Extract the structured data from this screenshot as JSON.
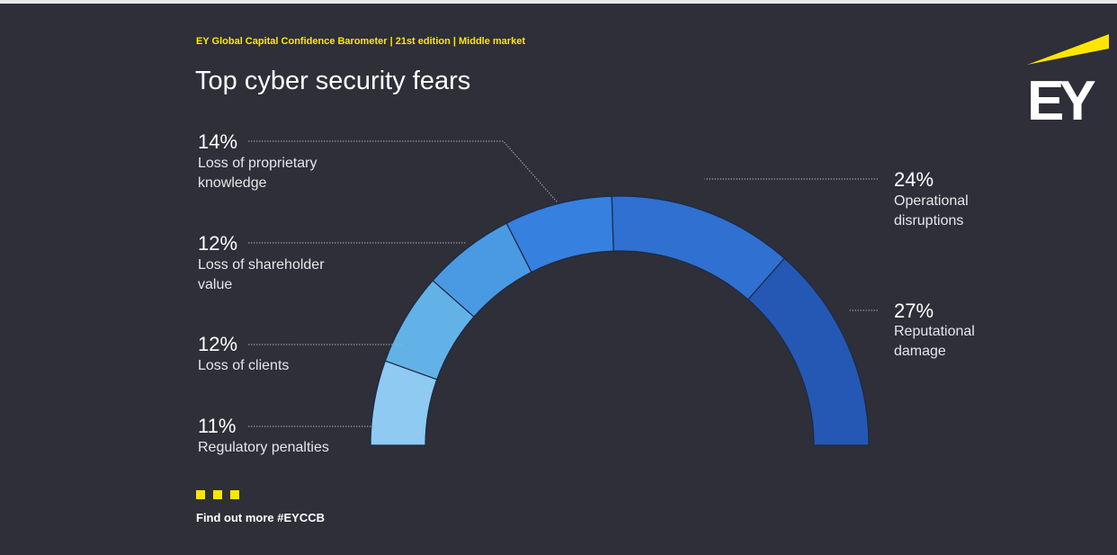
{
  "header": {
    "source": "EY Global Capital Confidence Barometer | 21st edition | Middle market",
    "title": "Top cyber security fears"
  },
  "chart_data": {
    "type": "pie",
    "style": "half-donut",
    "title": "Top cyber security fears",
    "unit": "%",
    "slices": [
      {
        "label": "Regulatory penalties",
        "value": 11,
        "display": "11%",
        "color": "#8fcaf2"
      },
      {
        "label": "Loss of clients",
        "value": 12,
        "display": "12%",
        "color": "#62b2e8"
      },
      {
        "label": "Loss of shareholder value",
        "value": 12,
        "display": "12%",
        "color": "#4a9ae3"
      },
      {
        "label": "Loss of proprietary knowledge",
        "value": 14,
        "display": "14%",
        "color": "#3680df"
      },
      {
        "label": "Operational disruptions",
        "value": 24,
        "display": "24%",
        "color": "#2f70d0"
      },
      {
        "label": "Reputational damage",
        "value": 27,
        "display": "27%",
        "color": "#2558b5"
      }
    ]
  },
  "labels": {
    "left": [
      {
        "pct": "14%",
        "lines": [
          "Loss of proprietary",
          "knowledge"
        ]
      },
      {
        "pct": "12%",
        "lines": [
          "Loss of shareholder",
          "value"
        ]
      },
      {
        "pct": "12%",
        "lines": [
          "Loss of clients"
        ]
      },
      {
        "pct": "11%",
        "lines": [
          "Regulatory penalties"
        ]
      }
    ],
    "right": [
      {
        "pct": "24%",
        "lines": [
          "Operational",
          "disruptions"
        ]
      },
      {
        "pct": "27%",
        "lines": [
          "Reputational",
          "damage"
        ]
      }
    ]
  },
  "footer": {
    "cta": "Find out more  #EYCCB"
  },
  "brand": {
    "logo_text": "EY",
    "accent": "#ffe600",
    "background": "#2e2f38"
  }
}
